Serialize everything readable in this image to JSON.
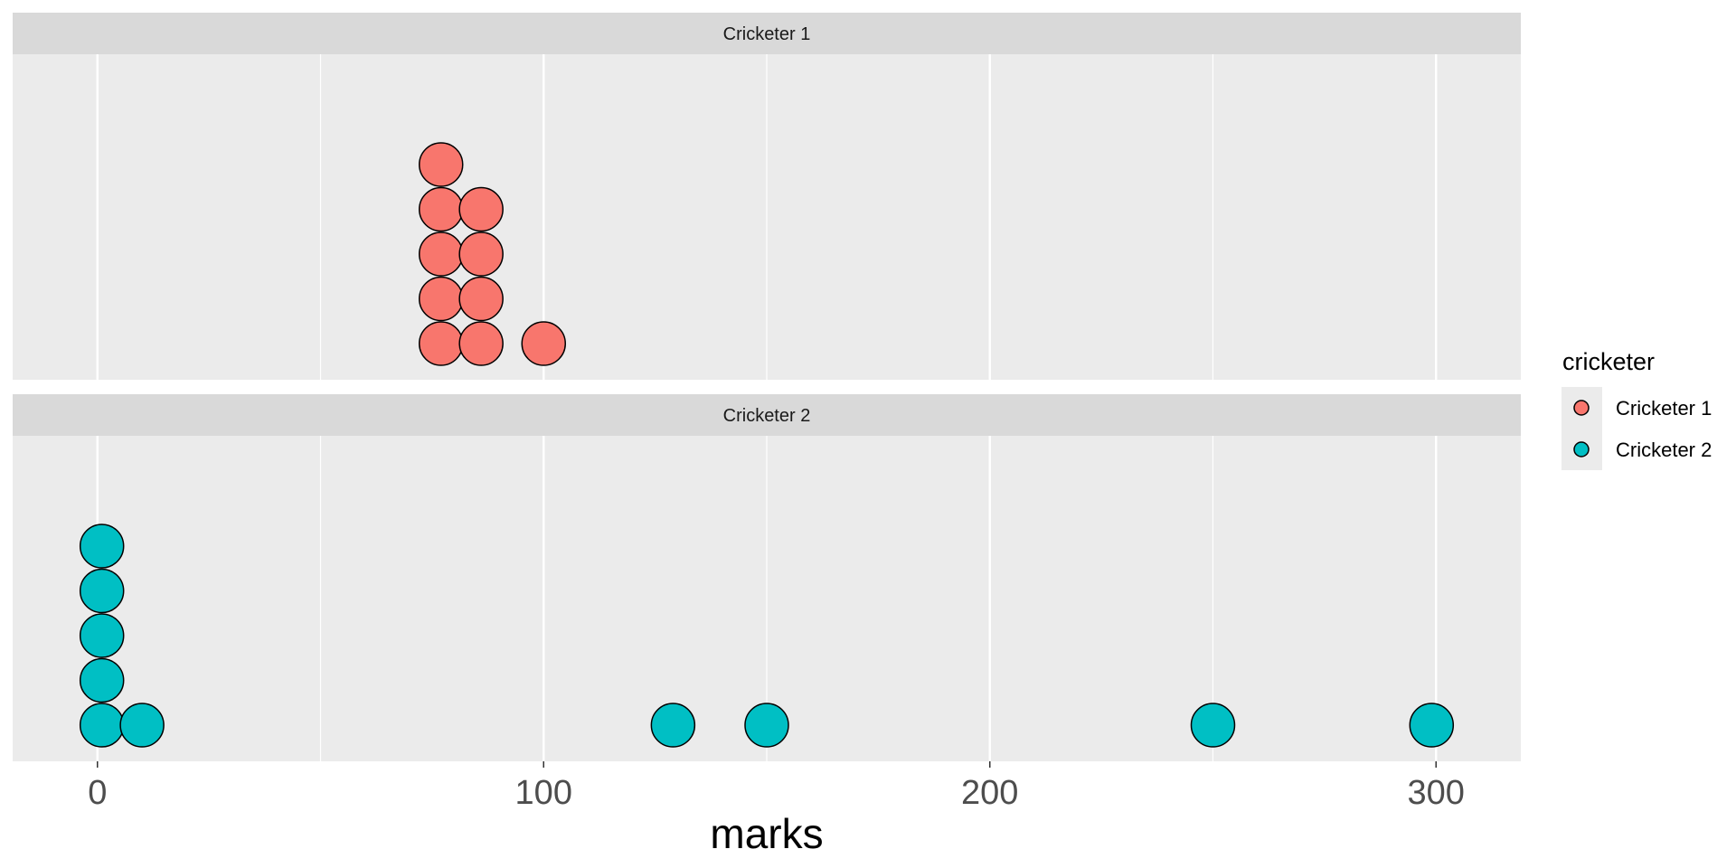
{
  "chart_data": {
    "type": "dotplot",
    "xlabel": "marks",
    "xlim": [
      -19,
      319
    ],
    "x_ticks": [
      0,
      100,
      200,
      300
    ],
    "x_tick_labels": [
      "0",
      "100",
      "200",
      "300"
    ],
    "grid": true,
    "legend": {
      "title": "cricketer",
      "position": "right",
      "entries": [
        {
          "label": "Cricketer 1",
          "color": "#F8766D"
        },
        {
          "label": "Cricketer 2",
          "color": "#00BFC4"
        }
      ]
    },
    "series": [
      {
        "name": "Cricketer 1",
        "color": "#F8766D",
        "points": [
          {
            "x": 77,
            "count": 5
          },
          {
            "x": 86,
            "count": 4
          },
          {
            "x": 100,
            "count": 1
          }
        ]
      },
      {
        "name": "Cricketer 2",
        "color": "#00BFC4",
        "points": [
          {
            "x": 1,
            "count": 5
          },
          {
            "x": 10,
            "count": 1
          },
          {
            "x": 129,
            "count": 1
          },
          {
            "x": 150,
            "count": 1
          },
          {
            "x": 250,
            "count": 1
          },
          {
            "x": 299,
            "count": 1
          }
        ]
      }
    ]
  }
}
